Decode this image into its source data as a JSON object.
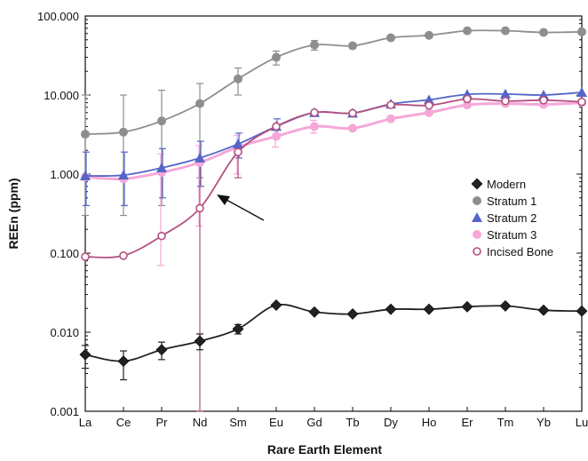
{
  "chart_data": {
    "type": "line",
    "title": "",
    "xlabel": "Rare Earth Element",
    "ylabel": "REEn (ppm)",
    "y_scale": "log",
    "ylim": [
      0.001,
      100
    ],
    "y_ticks": [
      {
        "value": 0.001,
        "label": "0.001"
      },
      {
        "value": 0.01,
        "label": "0.010"
      },
      {
        "value": 0.1,
        "label": "0.100"
      },
      {
        "value": 1,
        "label": "1.000"
      },
      {
        "value": 10,
        "label": "10.000"
      },
      {
        "value": 100,
        "label": "100.000"
      }
    ],
    "categories": [
      "La",
      "Ce",
      "Pr",
      "Nd",
      "Sm",
      "Eu",
      "Gd",
      "Tb",
      "Dy",
      "Ho",
      "Er",
      "Tm",
      "Yb",
      "Lu"
    ],
    "grid": false,
    "legend_position": "right",
    "annotation": "arrow pointing to Incised Bone at Nd",
    "series": [
      {
        "name": "Modern",
        "color": "#222222",
        "marker": "diamond",
        "values": [
          0.0052,
          0.0043,
          0.006,
          0.0077,
          0.011,
          0.022,
          0.018,
          0.017,
          0.0195,
          0.0195,
          0.021,
          0.0215,
          0.019,
          0.0185
        ],
        "error_low": [
          0.0035,
          0.0025,
          0.0045,
          0.006,
          0.0095,
          null,
          null,
          null,
          null,
          null,
          null,
          null,
          null,
          null
        ],
        "error_high": [
          0.0068,
          0.0058,
          0.0075,
          0.0095,
          0.0125,
          null,
          null,
          null,
          null,
          null,
          null,
          null,
          null,
          null
        ]
      },
      {
        "name": "Stratum 1",
        "color": "#8e8e8e",
        "marker": "circle",
        "values": [
          3.2,
          3.4,
          4.7,
          7.8,
          16,
          30,
          43,
          42,
          53,
          57,
          65,
          65,
          62,
          63
        ],
        "error_low": [
          0.3,
          0.3,
          0.4,
          0.9,
          10,
          24,
          37,
          null,
          null,
          null,
          null,
          null,
          null,
          null
        ],
        "error_high": [
          10,
          10,
          11.5,
          14,
          22,
          36,
          49,
          null,
          null,
          null,
          null,
          null,
          null,
          null
        ]
      },
      {
        "name": "Stratum 2",
        "color": "#5566c8",
        "marker": "triangle",
        "values": [
          0.95,
          0.97,
          1.2,
          1.6,
          2.4,
          4.0,
          6.0,
          5.9,
          7.7,
          8.7,
          10.2,
          10.3,
          10.0,
          10.8
        ],
        "error_low": [
          0.4,
          0.4,
          0.5,
          0.7,
          1.6,
          3.2,
          null,
          null,
          null,
          null,
          null,
          null,
          null,
          null
        ],
        "error_high": [
          1.9,
          1.9,
          2.1,
          2.6,
          3.3,
          5.0,
          null,
          null,
          null,
          null,
          null,
          null,
          null,
          null
        ]
      },
      {
        "name": "Stratum 3",
        "color": "#f5a8d8",
        "marker": "circle",
        "values": [
          0.92,
          0.87,
          1.05,
          1.4,
          2.2,
          3.0,
          4.0,
          3.8,
          5.0,
          6.0,
          7.5,
          7.8,
          7.6,
          8.0
        ],
        "error_low": [
          null,
          null,
          0.07,
          0.22,
          1.0,
          2.2,
          3.3,
          null,
          null,
          null,
          null,
          null,
          null,
          null
        ],
        "error_high": [
          null,
          null,
          1.8,
          2.3,
          3.1,
          3.8,
          4.8,
          null,
          null,
          null,
          null,
          null,
          null,
          null
        ]
      },
      {
        "name": "Incised Bone",
        "color": "#b3507f",
        "marker": "open-circle",
        "values": [
          0.09,
          0.093,
          0.165,
          0.37,
          1.9,
          4.0,
          6.0,
          5.9,
          7.5,
          7.4,
          8.9,
          8.4,
          8.6,
          8.2
        ],
        "error_low": [
          null,
          null,
          null,
          0.001,
          0.9,
          null,
          null,
          null,
          null,
          null,
          null,
          null,
          null,
          null
        ],
        "error_high": [
          null,
          null,
          null,
          1.3,
          2.0,
          null,
          null,
          null,
          null,
          null,
          null,
          null,
          null,
          null
        ]
      }
    ]
  }
}
